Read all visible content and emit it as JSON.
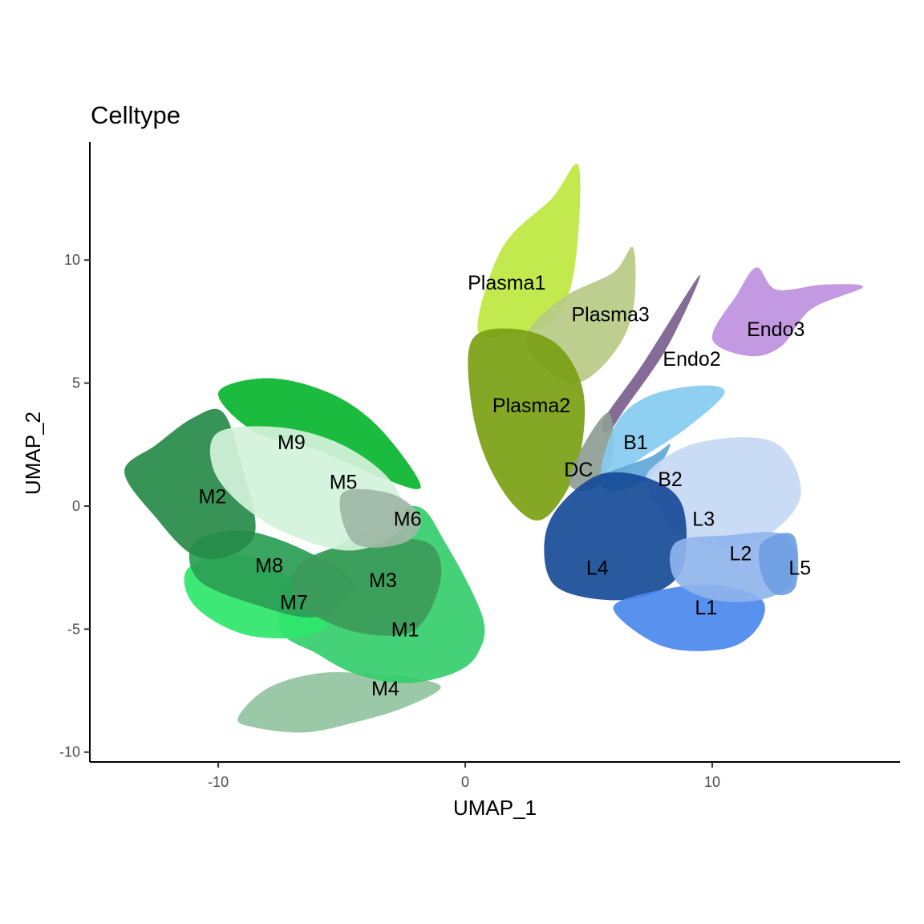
{
  "chart_data": {
    "type": "scatter",
    "title": "Celltype",
    "xlabel": "UMAP_1",
    "ylabel": "UMAP_2",
    "xlim": [
      -15.2,
      17.6
    ],
    "ylim": [
      -10.4,
      14.8
    ],
    "x_ticks": [
      -10,
      0,
      10
    ],
    "x_tick_labels": [
      "-10",
      "0",
      "10"
    ],
    "y_ticks": [
      -10,
      -5,
      0,
      5,
      10
    ],
    "y_tick_labels": [
      "-10",
      "-5",
      "0",
      "5",
      "10"
    ],
    "grid": false,
    "legend": "none",
    "clusters": [
      {
        "label": "M4",
        "color": "#93c4a1",
        "x": -3.8,
        "y": -7.4,
        "points": [
          [
            -9.2,
            -8.6
          ],
          [
            -8.0,
            -7.4
          ],
          [
            -6.0,
            -6.8
          ],
          [
            -4.0,
            -6.8
          ],
          [
            -2.0,
            -7.0
          ],
          [
            -1.0,
            -7.4
          ],
          [
            -2.5,
            -8.2
          ],
          [
            -4.5,
            -8.8
          ],
          [
            -6.5,
            -9.2
          ],
          [
            -8.5,
            -9.0
          ]
        ]
      },
      {
        "label": "M1",
        "color": "#35cd6c",
        "x": -3.0,
        "y": -5.0,
        "points": [
          [
            -7.0,
            -2.8
          ],
          [
            -4.0,
            -1.0
          ],
          [
            -2.0,
            0.0
          ],
          [
            -0.8,
            -1.5
          ],
          [
            0.7,
            -4.5
          ],
          [
            0.5,
            -6.0
          ],
          [
            -0.5,
            -6.8
          ],
          [
            -2.5,
            -7.2
          ],
          [
            -4.5,
            -6.8
          ],
          [
            -6.0,
            -6.0
          ],
          [
            -7.5,
            -5.0
          ]
        ]
      },
      {
        "label": "M7",
        "color": "#2ee66a",
        "x": -7.5,
        "y": -3.9,
        "points": [
          [
            -11.2,
            -2.5
          ],
          [
            -9.0,
            -2.0
          ],
          [
            -7.0,
            -3.0
          ],
          [
            -5.5,
            -4.5
          ],
          [
            -6.5,
            -5.3
          ],
          [
            -9.0,
            -5.2
          ],
          [
            -11.0,
            -4.0
          ]
        ]
      },
      {
        "label": "M8",
        "color": "#2a9e55",
        "x": -8.5,
        "y": -2.4,
        "points": [
          [
            -11.0,
            -1.5
          ],
          [
            -9.0,
            -1.0
          ],
          [
            -6.5,
            -1.8
          ],
          [
            -4.5,
            -3.2
          ],
          [
            -6.0,
            -4.5
          ],
          [
            -8.5,
            -4.0
          ],
          [
            -10.8,
            -3.0
          ]
        ]
      },
      {
        "label": "M3",
        "color": "#3d9a5a",
        "x": -3.9,
        "y": -3.0,
        "points": [
          [
            -6.5,
            -2.2
          ],
          [
            -4.0,
            -1.4
          ],
          [
            -1.5,
            -1.5
          ],
          [
            -1.0,
            -3.0
          ],
          [
            -2.0,
            -5.0
          ],
          [
            -4.0,
            -5.2
          ],
          [
            -6.0,
            -4.5
          ],
          [
            -7.0,
            -3.5
          ]
        ]
      },
      {
        "label": "M2",
        "color": "#268b48",
        "x": -10.8,
        "y": 0.4,
        "points": [
          [
            -13.8,
            1.4
          ],
          [
            -12.5,
            2.5
          ],
          [
            -11.0,
            3.6
          ],
          [
            -9.8,
            3.8
          ],
          [
            -9.0,
            1.5
          ],
          [
            -8.5,
            -1.0
          ],
          [
            -9.5,
            -2.0
          ],
          [
            -11.0,
            -2.0
          ],
          [
            -12.5,
            -0.5
          ]
        ]
      },
      {
        "label": "M9",
        "color": "#07b52f",
        "x": -7.6,
        "y": 2.6,
        "points": [
          [
            -10.0,
            4.6
          ],
          [
            -8.0,
            5.2
          ],
          [
            -5.5,
            4.6
          ],
          [
            -3.5,
            3.2
          ],
          [
            -1.8,
            0.8
          ],
          [
            -3.5,
            1.2
          ],
          [
            -6.0,
            2.3
          ],
          [
            -8.5,
            3.0
          ]
        ]
      },
      {
        "label": "M5",
        "color": "#d2f2da",
        "x": -5.5,
        "y": 1.0,
        "points": [
          [
            -10.0,
            3.0
          ],
          [
            -7.5,
            3.2
          ],
          [
            -5.0,
            2.5
          ],
          [
            -3.0,
            1.0
          ],
          [
            -2.5,
            -0.8
          ],
          [
            -4.5,
            -1.8
          ],
          [
            -7.0,
            -1.2
          ],
          [
            -9.0,
            0.0
          ],
          [
            -10.2,
            1.5
          ]
        ]
      },
      {
        "label": "M6",
        "color": "#9fb7a6",
        "x": -2.9,
        "y": -0.5,
        "points": [
          [
            -5.0,
            0.5
          ],
          [
            -3.0,
            0.5
          ],
          [
            -1.8,
            -0.5
          ],
          [
            -2.5,
            -1.5
          ],
          [
            -4.5,
            -1.5
          ]
        ]
      },
      {
        "label": "Plasma1",
        "color": "#bde840",
        "x": 0.1,
        "y": 9.1,
        "points": [
          [
            0.5,
            7.2
          ],
          [
            1.5,
            10.5
          ],
          [
            3.5,
            12.5
          ],
          [
            4.6,
            13.8
          ],
          [
            4.4,
            9.5
          ],
          [
            3.5,
            7.5
          ],
          [
            1.8,
            7.0
          ]
        ]
      },
      {
        "label": "Plasma3",
        "color": "#b9ca85",
        "x": 4.3,
        "y": 7.8,
        "points": [
          [
            2.5,
            7.0
          ],
          [
            4.0,
            8.5
          ],
          [
            6.0,
            9.5
          ],
          [
            6.8,
            10.5
          ],
          [
            6.8,
            8.0
          ],
          [
            6.0,
            6.2
          ],
          [
            4.5,
            5.0
          ],
          [
            3.0,
            5.8
          ]
        ]
      },
      {
        "label": "Plasma2",
        "color": "#7aa014",
        "x": 1.1,
        "y": 4.1,
        "points": [
          [
            0.3,
            6.8
          ],
          [
            2.0,
            7.2
          ],
          [
            3.8,
            6.5
          ],
          [
            4.8,
            4.5
          ],
          [
            4.5,
            1.5
          ],
          [
            3.2,
            -0.5
          ],
          [
            2.0,
            0.0
          ],
          [
            0.8,
            2.0
          ],
          [
            0.2,
            4.5
          ]
        ]
      },
      {
        "label": "Endo2",
        "color": "#7a5f8e",
        "x": 8.0,
        "y": 6.0,
        "points": [
          [
            5.6,
            3.5
          ],
          [
            7.2,
            5.8
          ],
          [
            9.5,
            9.4
          ],
          [
            8.2,
            6.5
          ],
          [
            6.5,
            4.0
          ],
          [
            5.8,
            3.0
          ]
        ]
      },
      {
        "label": "Endo3",
        "color": "#be90de",
        "x": 11.4,
        "y": 7.2,
        "points": [
          [
            10.0,
            6.8
          ],
          [
            11.0,
            8.6
          ],
          [
            11.8,
            9.7
          ],
          [
            12.6,
            8.8
          ],
          [
            14.5,
            9.0
          ],
          [
            16.1,
            8.9
          ],
          [
            14.0,
            8.0
          ],
          [
            12.8,
            6.5
          ],
          [
            11.5,
            6.1
          ]
        ]
      },
      {
        "label": "DC",
        "color": "#8d9e94",
        "x": 4.0,
        "y": 1.5,
        "points": [
          [
            4.2,
            1.0
          ],
          [
            4.8,
            2.5
          ],
          [
            5.8,
            3.8
          ],
          [
            6.0,
            2.2
          ],
          [
            5.5,
            1.0
          ],
          [
            4.8,
            0.6
          ]
        ]
      },
      {
        "label": "B1",
        "color": "#85cbf0",
        "x": 6.4,
        "y": 2.6,
        "points": [
          [
            5.5,
            1.5
          ],
          [
            6.2,
            3.5
          ],
          [
            7.5,
            4.5
          ],
          [
            9.5,
            4.9
          ],
          [
            10.5,
            4.6
          ],
          [
            9.0,
            3.2
          ],
          [
            7.2,
            2.0
          ],
          [
            6.0,
            1.2
          ]
        ]
      },
      {
        "label": "B2",
        "color": "#5fa7d6",
        "x": 7.8,
        "y": 1.1,
        "points": [
          [
            5.5,
            1.2
          ],
          [
            7.5,
            2.0
          ],
          [
            8.3,
            2.5
          ],
          [
            7.5,
            1.2
          ],
          [
            6.0,
            0.6
          ]
        ]
      },
      {
        "label": "L3",
        "color": "#c5d8f5",
        "x": 9.2,
        "y": -0.5,
        "points": [
          [
            7.5,
            1.5
          ],
          [
            9.5,
            2.6
          ],
          [
            12.5,
            2.6
          ],
          [
            13.6,
            0.6
          ],
          [
            12.5,
            -1.0
          ],
          [
            10.5,
            -1.6
          ],
          [
            8.5,
            -1.0
          ],
          [
            7.5,
            0.5
          ]
        ]
      },
      {
        "label": "L4",
        "color": "#174b97",
        "x": 4.9,
        "y": -2.5,
        "points": [
          [
            3.2,
            -1.5
          ],
          [
            3.8,
            0.0
          ],
          [
            5.5,
            1.3
          ],
          [
            7.5,
            1.1
          ],
          [
            8.8,
            0.0
          ],
          [
            8.8,
            -2.5
          ],
          [
            7.5,
            -3.6
          ],
          [
            5.5,
            -3.8
          ],
          [
            3.6,
            -3.2
          ]
        ]
      },
      {
        "label": "L1",
        "color": "#4b88ee",
        "x": 9.3,
        "y": -4.1,
        "points": [
          [
            6.0,
            -4.2
          ],
          [
            8.0,
            -5.7
          ],
          [
            10.5,
            -5.8
          ],
          [
            11.8,
            -5.0
          ],
          [
            12.0,
            -3.8
          ],
          [
            10.0,
            -3.2
          ],
          [
            7.5,
            -3.5
          ]
        ]
      },
      {
        "label": "L2",
        "color": "#8fb4ec",
        "x": 10.7,
        "y": -1.9,
        "points": [
          [
            8.5,
            -1.5
          ],
          [
            10.5,
            -1.2
          ],
          [
            13.0,
            -1.2
          ],
          [
            13.3,
            -3.0
          ],
          [
            12.0,
            -3.8
          ],
          [
            10.0,
            -3.8
          ],
          [
            8.5,
            -3.0
          ]
        ]
      },
      {
        "label": "L5",
        "color": "#6f9fe2",
        "x": 13.1,
        "y": -2.5,
        "points": [
          [
            12.0,
            -1.5
          ],
          [
            13.3,
            -1.2
          ],
          [
            13.4,
            -3.2
          ],
          [
            12.6,
            -3.6
          ],
          [
            12.0,
            -2.8
          ]
        ]
      }
    ]
  }
}
